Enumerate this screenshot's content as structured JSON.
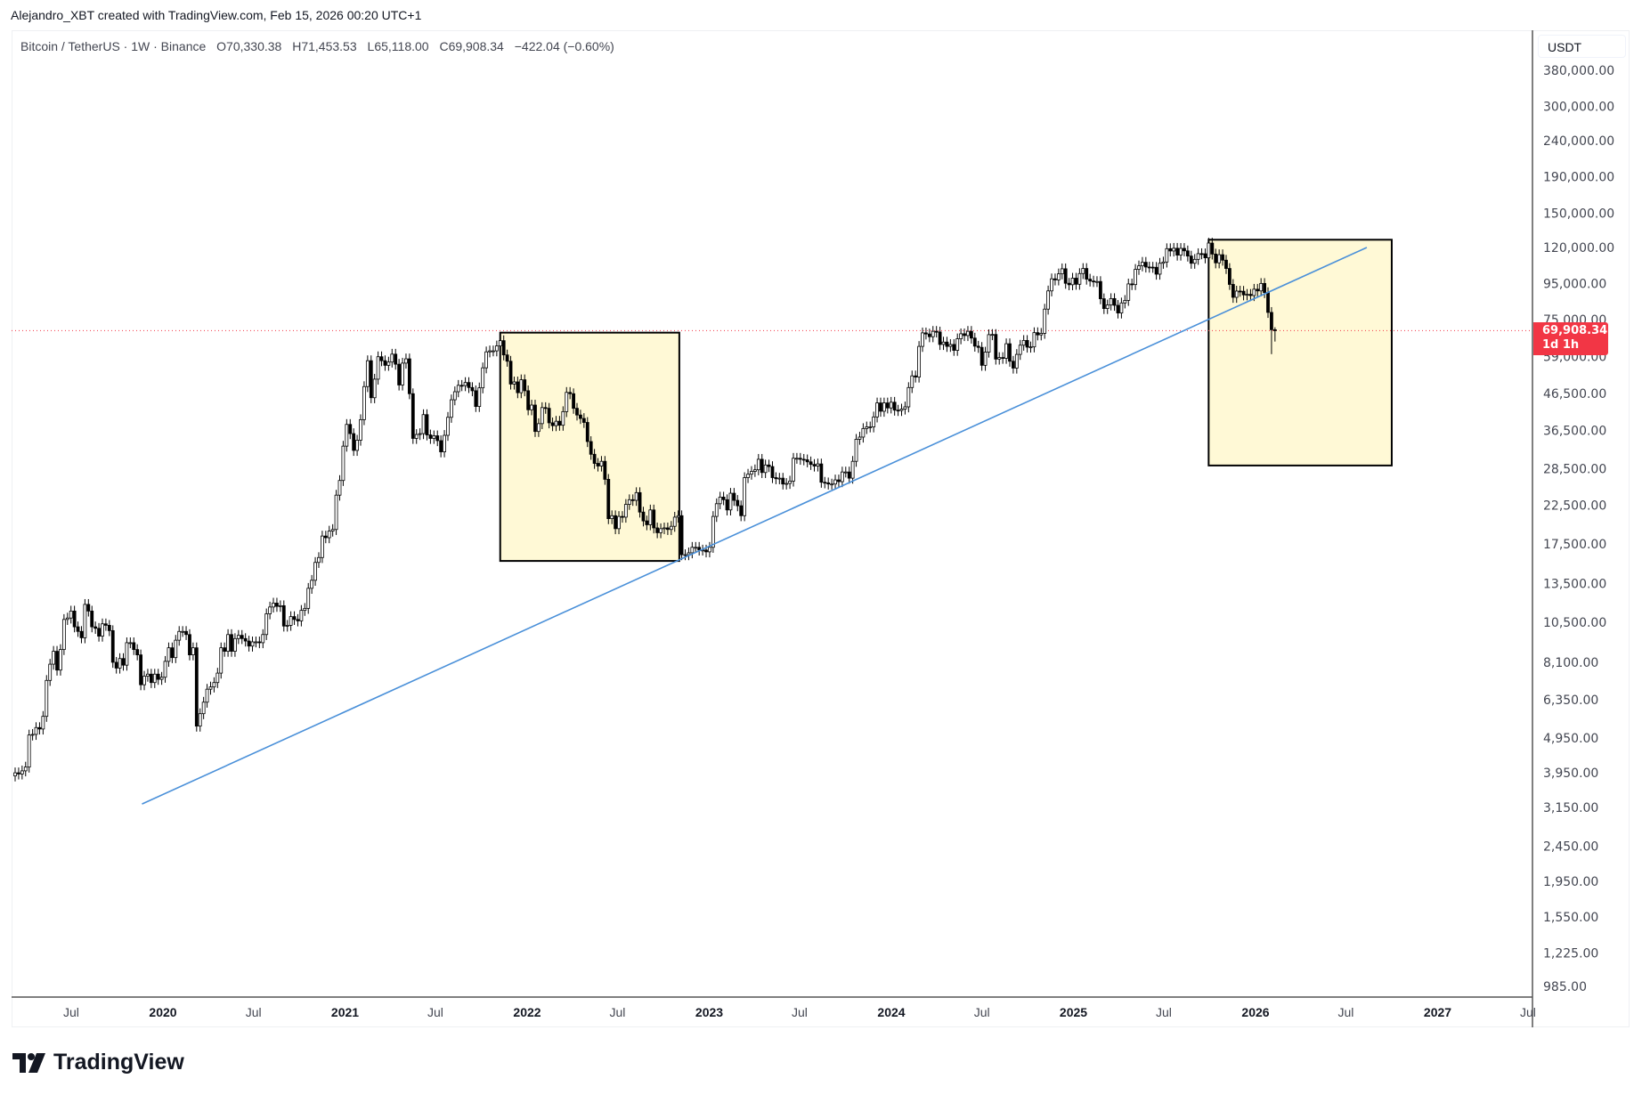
{
  "credit": "Alejandro_XBT created with TradingView.com, Feb 15, 2026 00:20 UTC+1",
  "legend": {
    "symbol": "Bitcoin / TetherUS · 1W · Binance",
    "open": "O70,330.38",
    "high": "H71,453.53",
    "low": "L65,118.00",
    "close": "C69,908.34",
    "change": "−422.04 (−0.60%)"
  },
  "currency": "USDT",
  "last_price": {
    "value": "69,908.34",
    "countdown": "1d 1h"
  },
  "brand": "TradingView",
  "colors": {
    "up_body": "#ffffff",
    "down_body": "#000000",
    "wick": "#000000",
    "trendline": "#4a90d9",
    "box_fill": "#fff9d6",
    "box_border": "#000000",
    "last_price": "#f23645"
  },
  "chart_data": {
    "type": "candlestick",
    "title": "Bitcoin / TetherUS · 1W · Binance",
    "scale": "log",
    "grid": false,
    "ylim": [
      950,
      400000
    ],
    "xlim": [
      "2019-03-01",
      "2027-07-25"
    ],
    "y_ticks": [
      "380,000.00",
      "300,000.00",
      "240,000.00",
      "190,000.00",
      "150,000.00",
      "120,000.00",
      "95,000.00",
      "75,000.00",
      "59,000.00",
      "46,500.00",
      "36,500.00",
      "28,500.00",
      "22,500.00",
      "17,500.00",
      "13,500.00",
      "10,500.00",
      "8,100.00",
      "6,350.00",
      "4,950.00",
      "3,950.00",
      "3,150.00",
      "2,450.00",
      "1,950.00",
      "1,550.00",
      "1,225.00",
      "985.00"
    ],
    "x_ticks": [
      {
        "label": "Jul",
        "date": "2019-07-01",
        "bold": false
      },
      {
        "label": "2020",
        "date": "2020-01-01",
        "bold": true
      },
      {
        "label": "Jul",
        "date": "2020-07-01",
        "bold": false
      },
      {
        "label": "2021",
        "date": "2021-01-01",
        "bold": true
      },
      {
        "label": "Jul",
        "date": "2021-07-01",
        "bold": false
      },
      {
        "label": "2022",
        "date": "2022-01-01",
        "bold": true
      },
      {
        "label": "Jul",
        "date": "2022-07-01",
        "bold": false
      },
      {
        "label": "2023",
        "date": "2023-01-01",
        "bold": true
      },
      {
        "label": "Jul",
        "date": "2023-07-01",
        "bold": false
      },
      {
        "label": "2024",
        "date": "2024-01-01",
        "bold": true
      },
      {
        "label": "Jul",
        "date": "2024-07-01",
        "bold": false
      },
      {
        "label": "2025",
        "date": "2025-01-01",
        "bold": true
      },
      {
        "label": "Jul",
        "date": "2025-07-01",
        "bold": false
      },
      {
        "label": "2026",
        "date": "2026-01-01",
        "bold": true
      },
      {
        "label": "Jul",
        "date": "2026-07-01",
        "bold": false
      },
      {
        "label": "2027",
        "date": "2027-01-01",
        "bold": true
      },
      {
        "label": "Jul",
        "date": "2027-07-01",
        "bold": false
      }
    ],
    "interval": "1W",
    "last_week": "2026-02-09",
    "last_candle": {
      "open": 70330.38,
      "high": 71453.53,
      "low": 65118.0,
      "close": 69908.34
    },
    "weekly_close": [
      3950,
      3920,
      4000,
      4100,
      5050,
      5070,
      5300,
      5250,
      5700,
      7200,
      8000,
      8700,
      7700,
      8800,
      10700,
      10800,
      11300,
      10200,
      9900,
      9500,
      11800,
      11300,
      10200,
      10100,
      9600,
      10400,
      10300,
      9950,
      8100,
      7800,
      8300,
      7950,
      9200,
      9200,
      8800,
      8500,
      7000,
      7400,
      7500,
      7100,
      7500,
      7250,
      7350,
      8150,
      8900,
      8350,
      9350,
      9900,
      9900,
      9700,
      8500,
      8900,
      5350,
      5800,
      6250,
      6800,
      6900,
      7100,
      7550,
      8900,
      8700,
      9700,
      8700,
      9450,
      9650,
      9450,
      9300,
      9000,
      9250,
      9250,
      9200,
      9700,
      11100,
      11600,
      11900,
      11650,
      11700,
      10250,
      10300,
      10900,
      10700,
      10600,
      11350,
      11500,
      13100,
      13800,
      15500,
      16000,
      18400,
      18200,
      19000,
      19200,
      24000,
      26400,
      33000,
      38000,
      35800,
      32100,
      34300,
      39200,
      48600,
      57500,
      45200,
      51000,
      59000,
      57500,
      55800,
      57000,
      60000,
      56200,
      49100,
      56600,
      58200,
      46400,
      34700,
      35600,
      35800,
      40500,
      35500,
      34700,
      35300,
      34200,
      31800,
      35400,
      39800,
      44600,
      47000,
      49000,
      48900,
      49900,
      48300,
      47300,
      42700,
      48200,
      54900,
      60900,
      61300,
      61300,
      63300,
      65500,
      59700,
      57300,
      49400,
      50100,
      46700,
      50800,
      47300,
      41800,
      43100,
      36300,
      38200,
      42400,
      42200,
      38400,
      37700,
      38800,
      37800,
      41300,
      46800,
      46400,
      42200,
      40400,
      39500,
      38500,
      34000,
      31300,
      29500,
      29000,
      29900,
      26600,
      20600,
      21000,
      19300,
      20900,
      20800,
      22600,
      23300,
      23200,
      24400,
      21500,
      20300,
      19800,
      21800,
      19400,
      18800,
      19300,
      19400,
      19200,
      19600,
      20800,
      21000,
      16300,
      16300,
      16500,
      17100,
      17100,
      16800,
      16800,
      16600,
      17100,
      20900,
      22700,
      23700,
      23300,
      21800,
      24300,
      23200,
      22400,
      21000,
      26900,
      27500,
      28000,
      28300,
      30300,
      27800,
      29200,
      28900,
      26900,
      26700,
      26800,
      25800,
      25900,
      26300,
      30500,
      30500,
      30300,
      30200,
      29800,
      29300,
      29000,
      29400,
      26100,
      26000,
      25800,
      25800,
      26500,
      26200,
      27900,
      27900,
      26800,
      29900,
      34500,
      35000,
      37000,
      37400,
      37400,
      39900,
      43700,
      41400,
      43700,
      42300,
      43900,
      41700,
      41600,
      42000,
      42600,
      48300,
      52100,
      51700,
      63100,
      68900,
      68400,
      67200,
      69600,
      69300,
      63900,
      64900,
      63100,
      63900,
      61500,
      66300,
      68500,
      67700,
      69600,
      66600,
      63200,
      62700,
      55800,
      60800,
      68100,
      68200,
      58100,
      58700,
      58400,
      64200,
      57300,
      54800,
      59900,
      63600,
      65600,
      62800,
      62900,
      69000,
      68000,
      68700,
      80400,
      90500,
      97900,
      97200,
      101100,
      104500,
      95100,
      94200,
      98300,
      94500,
      101300,
      104700,
      97700,
      96500,
      96200,
      96200,
      86000,
      80700,
      82600,
      86100,
      82400,
      78400,
      83700,
      85100,
      94700,
      94300,
      104100,
      106500,
      109000,
      105700,
      105600,
      105500,
      100900,
      108300,
      109200,
      119100,
      117300,
      119400,
      114200,
      119300,
      117400,
      113500,
      108300,
      111100,
      115300,
      115200,
      112200,
      123500,
      115000,
      108600,
      114500,
      110500,
      104700,
      94400,
      86800,
      90400,
      90300,
      88200,
      88500,
      87800,
      91500,
      90500,
      95000,
      89500,
      78700,
      70330,
      69908
    ],
    "annotations": {
      "last_price_line": 69908.34,
      "trendline": {
        "from": {
          "date": "2019-11-20",
          "price": 3225
        },
        "to": {
          "date": "2026-08-12",
          "price": 120000
        }
      },
      "rectangles": [
        {
          "from": "2021-11-08",
          "to": "2022-11-02",
          "top": 69000,
          "bottom": 15650
        },
        {
          "from": "2025-09-29",
          "to": "2026-10-01",
          "top": 126200,
          "bottom": 29100
        }
      ]
    }
  }
}
